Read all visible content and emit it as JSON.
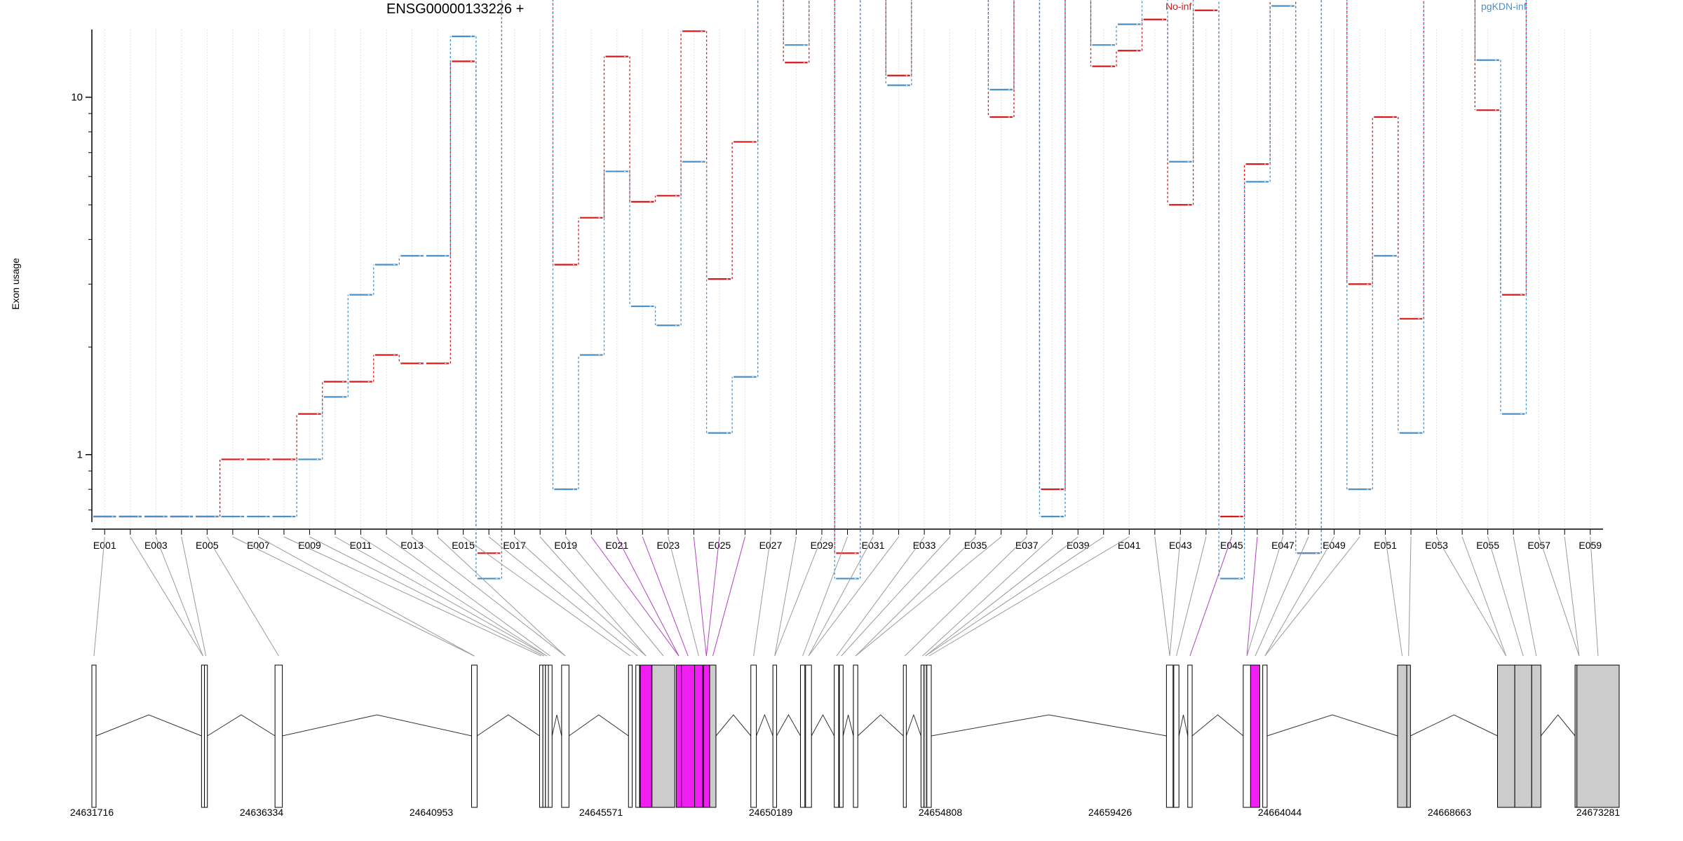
{
  "chart_data": {
    "type": "line",
    "title": "ENSG00000133226 +",
    "ylabel": "Exon usage",
    "xlabel": "",
    "yscale": "log",
    "ylim": [
      0.4,
      210
    ],
    "yticks": [
      200,
      100,
      50,
      30,
      20,
      10,
      1
    ],
    "grid": "vertical dotted lines at every exon",
    "legend_placement": "top, text only",
    "categories": [
      "E001",
      "E002",
      "E003",
      "E004",
      "E005",
      "E006",
      "E007",
      "E008",
      "E009",
      "E010",
      "E011",
      "E012",
      "E013",
      "E014",
      "E015",
      "E016",
      "E017",
      "E018",
      "E019",
      "E020",
      "E021",
      "E022",
      "E023",
      "E024",
      "E025",
      "E026",
      "E027",
      "E028",
      "E029",
      "E030",
      "E031",
      "E032",
      "E033",
      "E034",
      "E035",
      "E036",
      "E037",
      "E038",
      "E039",
      "E040",
      "E041",
      "E042",
      "E043",
      "E044",
      "E045",
      "E046",
      "E047",
      "E048",
      "E049",
      "E050",
      "E051",
      "E052",
      "E053",
      "E054",
      "E055",
      "E056",
      "E057",
      "E058",
      "E059"
    ],
    "series": [
      {
        "name": "No-inf",
        "color": "#d7191c",
        "values": [
          0.4,
          0.4,
          0.4,
          0.4,
          0.4,
          0.97,
          0.97,
          0.97,
          1.3,
          1.6,
          1.6,
          1.9,
          1.8,
          1.8,
          12.6,
          0.53,
          21,
          21,
          3.4,
          4.6,
          13,
          5.1,
          5.3,
          15.3,
          3.1,
          7.5,
          33,
          12.5,
          26,
          0.53,
          21,
          11.5,
          21,
          19.3,
          21.5,
          8.8,
          20.5,
          0.8,
          27,
          12.2,
          13.5,
          16.5,
          5,
          17.5,
          0.4,
          6.5,
          19.5,
          0.53,
          25.5,
          3,
          8.8,
          2.4,
          27,
          65,
          9.2,
          2.8,
          39,
          40,
          178
        ]
      },
      {
        "name": "pgKDN-inf",
        "color": "#4a90c8",
        "values": [
          0.4,
          0.4,
          0.4,
          0.4,
          0.4,
          0.4,
          0.4,
          0.4,
          0.97,
          1.45,
          2.8,
          3.4,
          3.6,
          3.6,
          14.8,
          0.45,
          24,
          26,
          0.8,
          1.9,
          6.2,
          2.6,
          2.3,
          6.6,
          1.15,
          1.65,
          37,
          14,
          32,
          0.45,
          25,
          10.8,
          22.5,
          20,
          22,
          10.5,
          21,
          0.4,
          33,
          14,
          16,
          21,
          6.6,
          19.5,
          0.45,
          5.8,
          18,
          0.53,
          26,
          0.8,
          3.6,
          1.15,
          21,
          66,
          12.7,
          1.3,
          36,
          40,
          180
        ]
      }
    ],
    "legend": [
      "No-inf",
      "pgKDN-inf"
    ],
    "gene_model": {
      "coordinates": [
        "24631716",
        "24636334",
        "24640953",
        "24645571",
        "24650189",
        "24654808",
        "24659426",
        "24664044",
        "24668663",
        "24673281"
      ],
      "highlight_color": "#f01ef0",
      "exon_color_plain": "#ffffff",
      "exon_color_grey": "#cccccc",
      "highlighted_exons": [
        "E020",
        "E021",
        "E022",
        "E024",
        "E025",
        "E026",
        "E045",
        "E046"
      ]
    }
  }
}
